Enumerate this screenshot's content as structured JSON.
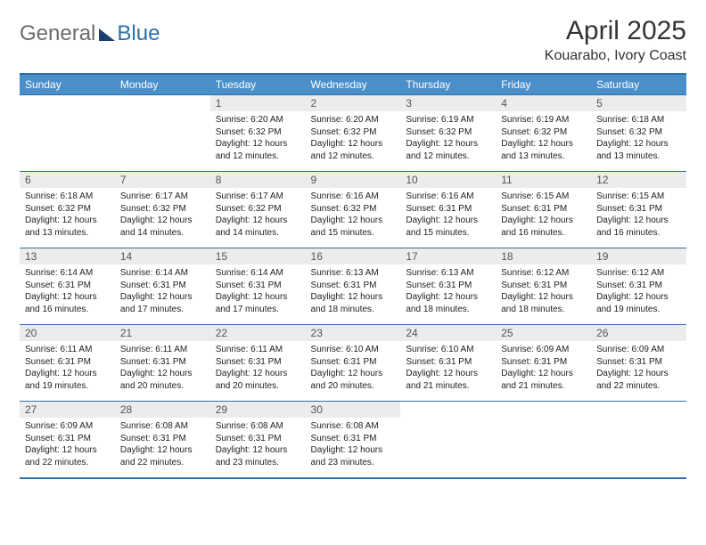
{
  "logo": {
    "text1": "General",
    "text2": "Blue"
  },
  "title": "April 2025",
  "location": "Kouarabo, Ivory Coast",
  "colors": {
    "header_bg": "#4a8fc9",
    "border": "#2f6fab",
    "daynum_bg": "#ececec",
    "text": "#222222"
  },
  "dayHeaders": [
    "Sunday",
    "Monday",
    "Tuesday",
    "Wednesday",
    "Thursday",
    "Friday",
    "Saturday"
  ],
  "startOffset": 2,
  "days": [
    {
      "n": 1,
      "sr": "6:20 AM",
      "ss": "6:32 PM",
      "dl": "12 hours and 12 minutes."
    },
    {
      "n": 2,
      "sr": "6:20 AM",
      "ss": "6:32 PM",
      "dl": "12 hours and 12 minutes."
    },
    {
      "n": 3,
      "sr": "6:19 AM",
      "ss": "6:32 PM",
      "dl": "12 hours and 12 minutes."
    },
    {
      "n": 4,
      "sr": "6:19 AM",
      "ss": "6:32 PM",
      "dl": "12 hours and 13 minutes."
    },
    {
      "n": 5,
      "sr": "6:18 AM",
      "ss": "6:32 PM",
      "dl": "12 hours and 13 minutes."
    },
    {
      "n": 6,
      "sr": "6:18 AM",
      "ss": "6:32 PM",
      "dl": "12 hours and 13 minutes."
    },
    {
      "n": 7,
      "sr": "6:17 AM",
      "ss": "6:32 PM",
      "dl": "12 hours and 14 minutes."
    },
    {
      "n": 8,
      "sr": "6:17 AM",
      "ss": "6:32 PM",
      "dl": "12 hours and 14 minutes."
    },
    {
      "n": 9,
      "sr": "6:16 AM",
      "ss": "6:32 PM",
      "dl": "12 hours and 15 minutes."
    },
    {
      "n": 10,
      "sr": "6:16 AM",
      "ss": "6:31 PM",
      "dl": "12 hours and 15 minutes."
    },
    {
      "n": 11,
      "sr": "6:15 AM",
      "ss": "6:31 PM",
      "dl": "12 hours and 16 minutes."
    },
    {
      "n": 12,
      "sr": "6:15 AM",
      "ss": "6:31 PM",
      "dl": "12 hours and 16 minutes."
    },
    {
      "n": 13,
      "sr": "6:14 AM",
      "ss": "6:31 PM",
      "dl": "12 hours and 16 minutes."
    },
    {
      "n": 14,
      "sr": "6:14 AM",
      "ss": "6:31 PM",
      "dl": "12 hours and 17 minutes."
    },
    {
      "n": 15,
      "sr": "6:14 AM",
      "ss": "6:31 PM",
      "dl": "12 hours and 17 minutes."
    },
    {
      "n": 16,
      "sr": "6:13 AM",
      "ss": "6:31 PM",
      "dl": "12 hours and 18 minutes."
    },
    {
      "n": 17,
      "sr": "6:13 AM",
      "ss": "6:31 PM",
      "dl": "12 hours and 18 minutes."
    },
    {
      "n": 18,
      "sr": "6:12 AM",
      "ss": "6:31 PM",
      "dl": "12 hours and 18 minutes."
    },
    {
      "n": 19,
      "sr": "6:12 AM",
      "ss": "6:31 PM",
      "dl": "12 hours and 19 minutes."
    },
    {
      "n": 20,
      "sr": "6:11 AM",
      "ss": "6:31 PM",
      "dl": "12 hours and 19 minutes."
    },
    {
      "n": 21,
      "sr": "6:11 AM",
      "ss": "6:31 PM",
      "dl": "12 hours and 20 minutes."
    },
    {
      "n": 22,
      "sr": "6:11 AM",
      "ss": "6:31 PM",
      "dl": "12 hours and 20 minutes."
    },
    {
      "n": 23,
      "sr": "6:10 AM",
      "ss": "6:31 PM",
      "dl": "12 hours and 20 minutes."
    },
    {
      "n": 24,
      "sr": "6:10 AM",
      "ss": "6:31 PM",
      "dl": "12 hours and 21 minutes."
    },
    {
      "n": 25,
      "sr": "6:09 AM",
      "ss": "6:31 PM",
      "dl": "12 hours and 21 minutes."
    },
    {
      "n": 26,
      "sr": "6:09 AM",
      "ss": "6:31 PM",
      "dl": "12 hours and 22 minutes."
    },
    {
      "n": 27,
      "sr": "6:09 AM",
      "ss": "6:31 PM",
      "dl": "12 hours and 22 minutes."
    },
    {
      "n": 28,
      "sr": "6:08 AM",
      "ss": "6:31 PM",
      "dl": "12 hours and 22 minutes."
    },
    {
      "n": 29,
      "sr": "6:08 AM",
      "ss": "6:31 PM",
      "dl": "12 hours and 23 minutes."
    },
    {
      "n": 30,
      "sr": "6:08 AM",
      "ss": "6:31 PM",
      "dl": "12 hours and 23 minutes."
    }
  ],
  "labels": {
    "sunrise": "Sunrise: ",
    "sunset": "Sunset: ",
    "daylight": "Daylight: "
  }
}
